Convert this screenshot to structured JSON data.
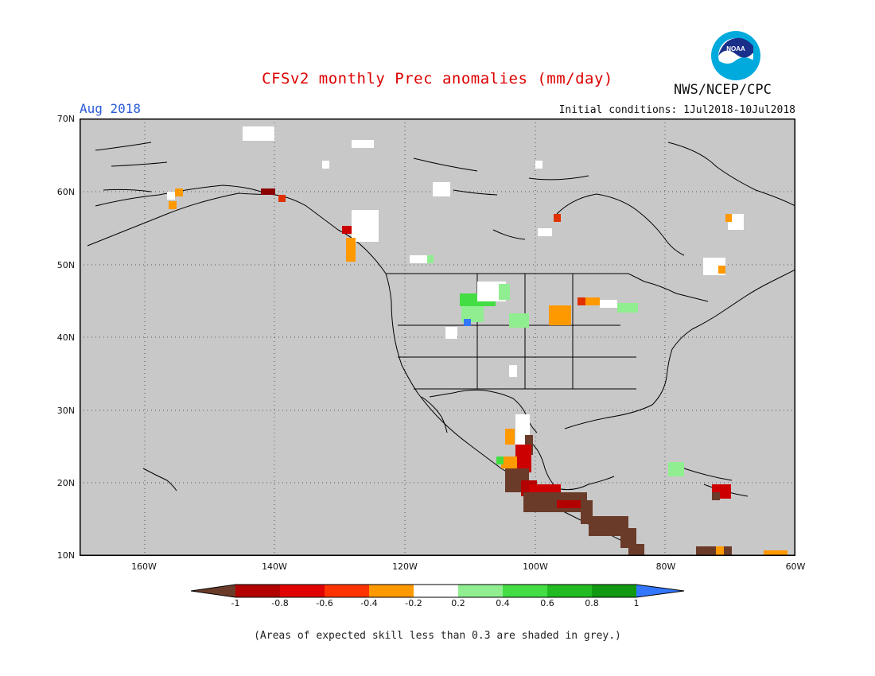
{
  "header": {
    "title": "CFSv2 monthly Prec anomalies (mm/day)",
    "period": "Aug 2018",
    "initial_conditions": "Initial conditions: 1Jul2018-10Jul2018",
    "agency": "NWS/NCEP/CPC",
    "logo_text": "NOAA"
  },
  "map": {
    "lat_labels": [
      "70N",
      "60N",
      "50N",
      "40N",
      "30N",
      "20N",
      "10N"
    ],
    "lon_labels": [
      "160W",
      "140W",
      "120W",
      "100W",
      "80W",
      "60W"
    ],
    "domain": {
      "lon": [
        -170,
        -60
      ],
      "lat": [
        10,
        70
      ]
    },
    "background_color": "#c8c8c8",
    "grid": "dotted"
  },
  "colorbar": {
    "labels": [
      "-1",
      "-0.8",
      "-0.6",
      "-0.4",
      "-0.2",
      "0.2",
      "0.4",
      "0.6",
      "0.8",
      "1"
    ],
    "colors": [
      "#6b3b2a",
      "#b30000",
      "#e00000",
      "#ff3300",
      "#ff9900",
      "#ffffff",
      "#90ee90",
      "#44dd44",
      "#22bb22",
      "#119911",
      "#3377ff"
    ]
  },
  "footnote": "(Areas of expected skill less than 0.3 are shaded in grey.)"
}
